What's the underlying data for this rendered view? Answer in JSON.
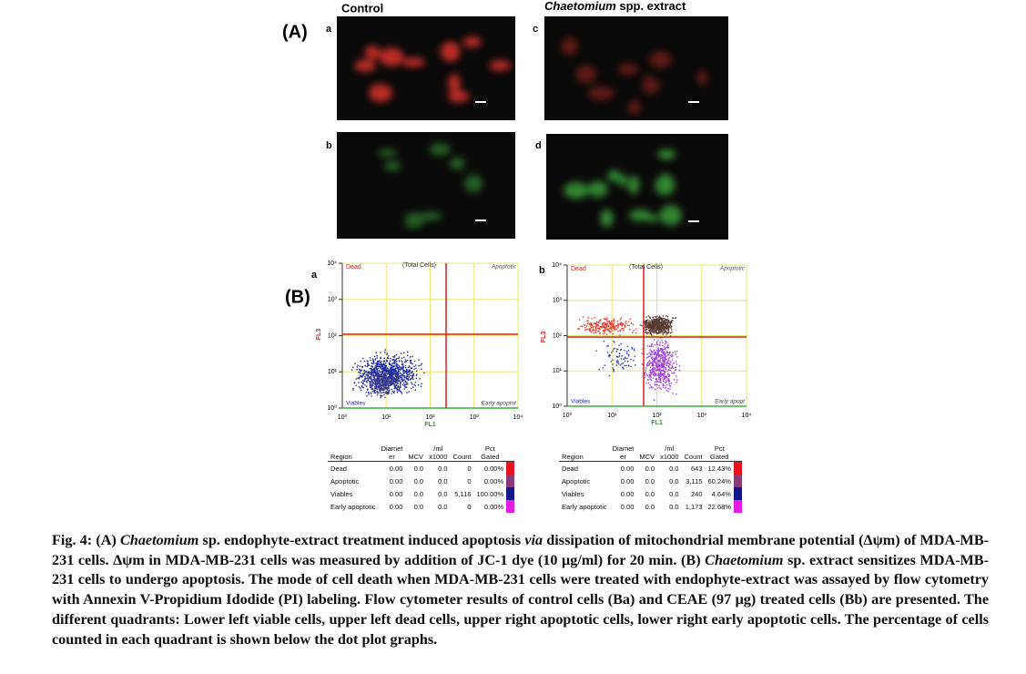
{
  "panel_a": {
    "label": "(A)",
    "control_heading": "Control",
    "extract_heading": [
      {
        "text": "Chaetomium",
        "italic": true
      },
      {
        "text": " spp. extract",
        "italic": false
      }
    ],
    "image_labels": [
      "a",
      "b",
      "c",
      "d"
    ]
  },
  "panel_b": {
    "label": "(B)",
    "plots": [
      {
        "label": "a",
        "dead": "Dead",
        "title": "(Total Cells)",
        "apoptotic": "Apoptotic",
        "viables": "Viables",
        "early": "Early apoptot",
        "x_axis": "FL1",
        "y_axis": "FL3",
        "xticks": [
          "10⁰",
          "10¹",
          "10²",
          "10³",
          "10⁴"
        ],
        "yticks": [
          "10⁰",
          "10¹",
          "10²",
          "10³",
          "10⁴"
        ],
        "table": {
          "header": [
            [
              "Region"
            ],
            [
              "Diamet",
              "er"
            ],
            [
              "MCV"
            ],
            [
              "/ml",
              "x1000"
            ],
            [
              "Count"
            ],
            [
              "Pct",
              "Gated"
            ]
          ],
          "rows": [
            [
              "Dead",
              "0.00",
              "0.0",
              "0.0",
              "0",
              "0.00%"
            ],
            [
              "Apoptotic",
              "0.00",
              "0.0",
              "0.0",
              "0",
              "0.00%"
            ],
            [
              "Viables",
              "0.00",
              "0.0",
              "0.0",
              "5,116",
              "100.00%"
            ],
            [
              "Early apoptotic",
              "0.00",
              "0.0",
              "0.0",
              "0",
              "0.00%"
            ]
          ]
        }
      },
      {
        "label": "b",
        "dead": "Dead",
        "title": "(Total Cells)",
        "apoptotic": "Apoptotic",
        "viables": "Viables",
        "early": "Early apopt",
        "x_axis": "FL1",
        "y_axis": "FL3",
        "xticks": [
          "10⁰",
          "10¹",
          "10²",
          "10³",
          "10⁴"
        ],
        "yticks": [
          "10⁰",
          "10¹",
          "10²",
          "10³",
          "10⁴"
        ],
        "table": {
          "header": [
            [
              "Region"
            ],
            [
              "Diamet",
              "er"
            ],
            [
              "MCV"
            ],
            [
              "/ml",
              "x1000"
            ],
            [
              "Count"
            ],
            [
              "Pct",
              "Gated"
            ]
          ],
          "rows": [
            [
              "Dead",
              "0.00",
              "0.0",
              "0.0",
              "643",
              "12.43%"
            ],
            [
              "Apoptotic",
              "0.00",
              "0.0",
              "0.0",
              "3,115",
              "60.24%"
            ],
            [
              "Viables",
              "0.00",
              "0.0",
              "0.0",
              "240",
              "4.64%"
            ],
            [
              "Early apoptotic",
              "0.00",
              "0.0",
              "0.0",
              "1,173",
              "22.68%"
            ]
          ]
        }
      }
    ]
  },
  "caption": [
    {
      "text": "Fig. 4: (A) ",
      "italic": false
    },
    {
      "text": "Chaetomium",
      "italic": true
    },
    {
      "text": " sp. endophyte-extract treatment induced apoptosis ",
      "italic": false
    },
    {
      "text": "via",
      "italic": true
    },
    {
      "text": " dissipation of mitochondrial membrane potential (Δψm) of MDA-MB-231  cells. Δψm in MDA-MB-231  cells was measured by addition of JC-1 dye (10 μg/ml) for 20 min. (B) ",
      "italic": false
    },
    {
      "text": "Chaetomium",
      "italic": true
    },
    {
      "text": " sp. extract sensitizes MDA-MB-231  cells to undergo apoptosis. The mode of cell death when MDA-MB-231  cells were treated with endophyte-extract was assayed by flow cytometry with Annexin V-Propidium Idodide (PI) labeling. Flow cytometer results of control cells (Ba) and CEAE (97 μg) treated cells (Bb) are presented. The different quadrants: Lower left viable cells, upper left dead cells, upper right apoptotic cells, lower right early apoptotic cells. The percentage of cells counted in each quadrant is shown below the dot plot graphs.",
      "italic": false
    }
  ]
}
